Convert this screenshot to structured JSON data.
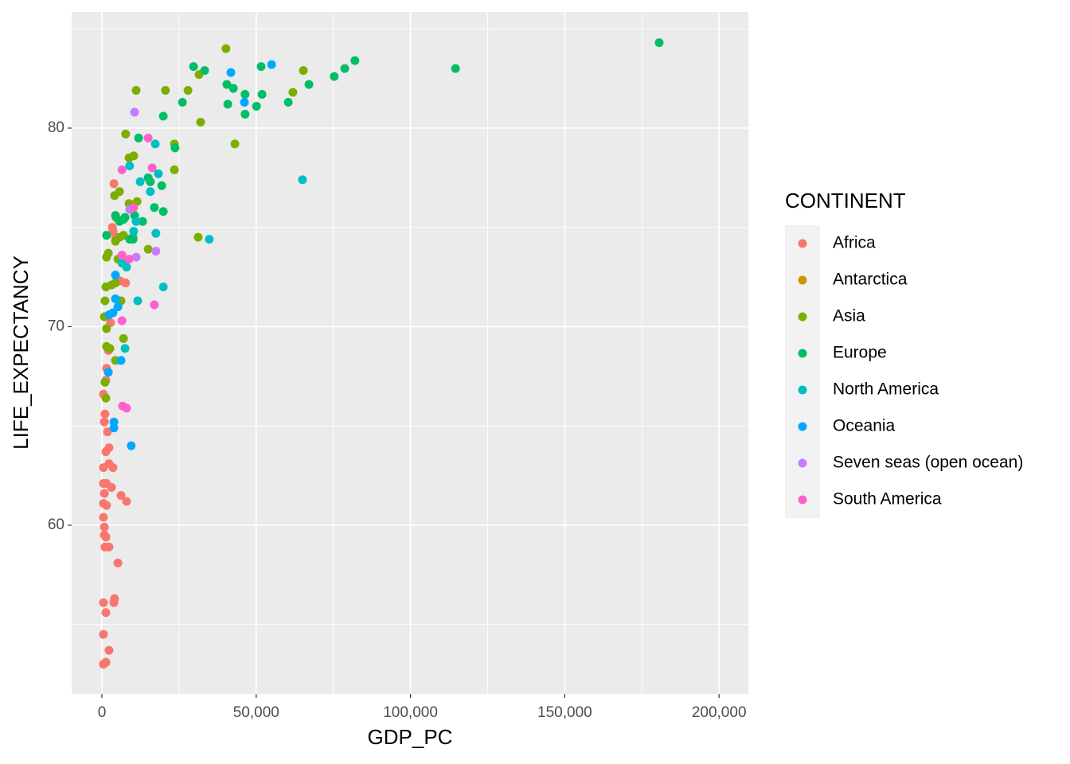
{
  "chart_data": {
    "type": "scatter",
    "x_label": "GDP_PC",
    "y_label": "LIFE_EXPECTANCY",
    "legend_title": "CONTINENT",
    "legend_position": "right",
    "grid": true,
    "xlim": [
      -9800,
      209500
    ],
    "ylim": [
      51.5,
      85.85
    ],
    "xticks": [
      0,
      {
        "value": 50000,
        "label": "50,000"
      },
      {
        "value": 100000,
        "label": "100,000"
      },
      {
        "value": 150000,
        "label": "150,000"
      },
      {
        "value": 200000,
        "label": "200,000"
      }
    ],
    "yticks": [
      60,
      70,
      80
    ],
    "series": [
      {
        "name": "Africa",
        "color": "#F8766D",
        "x": [
          500,
          1300,
          2300,
          500,
          1300,
          500,
          4100,
          3900,
          5200,
          1000,
          2300,
          800,
          1300,
          800,
          500,
          1500,
          500,
          8000,
          6200,
          800,
          500,
          1500,
          3100,
          500,
          3600,
          2300,
          1300,
          2300,
          1800,
          800,
          1000,
          500,
          1300,
          1500,
          2100,
          2800,
          7700,
          4900,
          4400,
          3400,
          3600,
          3900,
          5900
        ],
        "values": [
          53.0,
          53.1,
          53.7,
          54.5,
          55.6,
          56.1,
          56.3,
          56.1,
          58.1,
          58.9,
          58.9,
          59.5,
          59.4,
          59.9,
          60.4,
          61.0,
          61.1,
          61.2,
          61.5,
          61.6,
          62.1,
          62.1,
          61.9,
          62.9,
          62.9,
          63.1,
          63.7,
          63.9,
          64.7,
          65.2,
          65.6,
          66.6,
          67.3,
          67.9,
          68.8,
          70.2,
          72.2,
          72.3,
          74.5,
          75.0,
          74.8,
          77.2,
          72.3
        ]
      },
      {
        "name": "Antarctica",
        "color": "#CD9600",
        "x": [],
        "values": []
      },
      {
        "name": "Asia",
        "color": "#7CAE00",
        "x": [
          1300,
          1000,
          1500,
          1500,
          2600,
          4400,
          7000,
          800,
          1000,
          6200,
          1300,
          3100,
          4400,
          1500,
          2100,
          5200,
          4400,
          5700,
          7000,
          10100,
          4600,
          11400,
          8800,
          4100,
          5700,
          10300,
          8800,
          7700,
          11100,
          23500,
          23500,
          15000,
          31200,
          32000,
          27900,
          31500,
          40200,
          43100,
          61900,
          65300,
          20600
        ],
        "values": [
          66.4,
          67.2,
          69.9,
          69.0,
          68.9,
          68.3,
          69.4,
          70.5,
          71.3,
          71.3,
          72.0,
          72.1,
          72.2,
          73.5,
          73.7,
          73.4,
          74.3,
          74.5,
          74.6,
          74.5,
          75.5,
          76.3,
          76.2,
          76.6,
          76.8,
          78.6,
          78.5,
          79.7,
          81.9,
          79.2,
          77.9,
          73.9,
          74.5,
          80.3,
          81.9,
          82.7,
          84.0,
          79.2,
          81.8,
          82.9,
          81.9
        ]
      },
      {
        "name": "Europe",
        "color": "#00BE67",
        "x": [
          1500,
          7000,
          5700,
          7500,
          4400,
          13200,
          9000,
          10100,
          19900,
          17000,
          15000,
          15700,
          19400,
          19900,
          26100,
          29700,
          33300,
          40500,
          40800,
          42600,
          46400,
          46400,
          50100,
          51900,
          51600,
          60400,
          67100,
          75300,
          78700,
          82000,
          114600,
          180600,
          23700,
          11900,
          10600
        ],
        "values": [
          74.6,
          75.4,
          75.3,
          75.5,
          75.6,
          75.3,
          74.4,
          74.4,
          75.8,
          76.0,
          77.5,
          77.3,
          77.1,
          80.6,
          81.3,
          83.1,
          82.9,
          82.2,
          81.2,
          82.0,
          81.7,
          80.7,
          81.1,
          81.7,
          83.1,
          81.3,
          82.2,
          82.6,
          83.0,
          83.4,
          83.0,
          84.3,
          79.0,
          79.5,
          75.6
        ]
      },
      {
        "name": "North America",
        "color": "#00BFC4",
        "x": [
          7500,
          11600,
          19900,
          8000,
          6500,
          10300,
          17500,
          9000,
          12400,
          15700,
          18300,
          17300,
          34800,
          65000,
          11100
        ],
        "values": [
          68.9,
          71.3,
          72.0,
          73.0,
          73.2,
          74.8,
          74.7,
          78.1,
          77.3,
          76.8,
          77.7,
          79.2,
          74.4,
          77.4,
          75.3
        ]
      },
      {
        "name": "Oceania",
        "color": "#00A9FF",
        "x": [
          9500,
          3900,
          3900,
          6200,
          2100,
          2300,
          3600,
          5200,
          4400,
          4400,
          41800,
          55000,
          46200
        ],
        "values": [
          64.0,
          65.2,
          64.9,
          68.3,
          67.7,
          70.6,
          70.7,
          71.0,
          71.4,
          72.6,
          82.8,
          83.2,
          81.3
        ]
      },
      {
        "name": "Seven seas (open ocean)",
        "color": "#C77CFF",
        "x": [
          10600,
          11100,
          17500,
          9000
        ],
        "values": [
          80.8,
          73.5,
          73.8,
          75.9
        ]
      },
      {
        "name": "South America",
        "color": "#FF61CC",
        "x": [
          6500,
          15000,
          16300,
          6700,
          8000,
          6500,
          8800,
          6500,
          17000,
          10300
        ],
        "values": [
          77.9,
          79.5,
          78.0,
          66.0,
          65.9,
          73.6,
          73.4,
          70.3,
          71.1,
          76.0
        ]
      }
    ]
  }
}
